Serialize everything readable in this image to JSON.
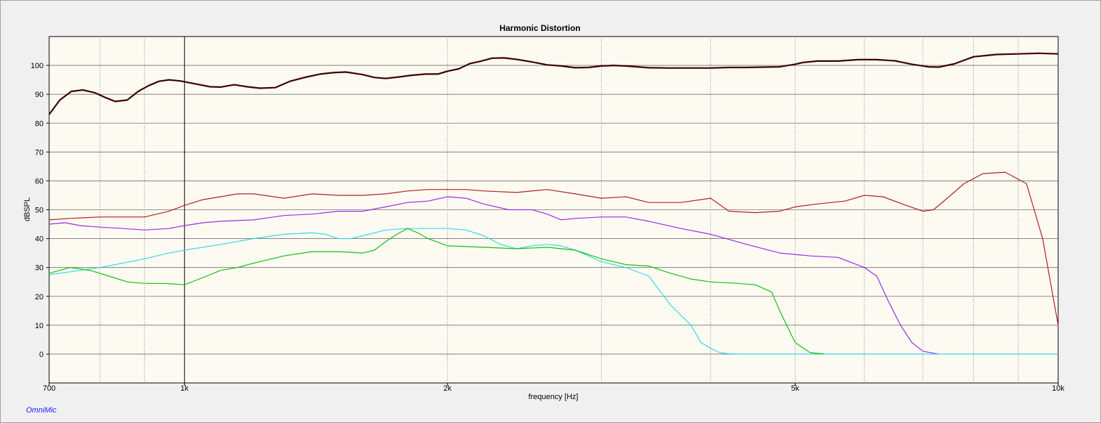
{
  "watermark": "OmniMic",
  "chart_data": {
    "type": "line",
    "title": "Harmonic Distortion",
    "xlabel": "frequency [Hz]",
    "ylabel": "dBSPL",
    "xscale": "log",
    "xlim": [
      700,
      10000
    ],
    "ylim": [
      -10,
      110
    ],
    "x_ticks": [
      {
        "value": 700,
        "label": "700"
      },
      {
        "value": 1000,
        "label": "1k"
      },
      {
        "value": 2000,
        "label": "2k"
      },
      {
        "value": 5000,
        "label": "5k"
      },
      {
        "value": 10000,
        "label": "10k"
      }
    ],
    "x_minor_gridlines": [
      800,
      900,
      3000,
      4000,
      6000,
      7000,
      8000,
      9000
    ],
    "x_major_gridline": 1000,
    "y_ticks": [
      0,
      10,
      20,
      30,
      40,
      50,
      60,
      70,
      80,
      90,
      100
    ],
    "grid": true,
    "legend": "none",
    "background": "#fdfaf2",
    "series": [
      {
        "color": "#3a0000",
        "x": [
          700,
          720,
          742,
          765,
          790,
          810,
          833,
          860,
          885,
          910,
          935,
          960,
          990,
          1030,
          1070,
          1100,
          1140,
          1180,
          1220,
          1270,
          1320,
          1380,
          1430,
          1480,
          1530,
          1600,
          1650,
          1700,
          1760,
          1820,
          1890,
          1950,
          2000,
          2060,
          2120,
          2180,
          2250,
          2320,
          2400,
          2500,
          2600,
          2700,
          2800,
          2900,
          3000,
          3100,
          3200,
          3400,
          3600,
          3800,
          4000,
          4200,
          4400,
          4600,
          4800,
          5000,
          5100,
          5300,
          5600,
          5900,
          6200,
          6500,
          6800,
          7100,
          7300,
          7600,
          8000,
          8500,
          9000,
          9500,
          10000
        ],
        "y": [
          83,
          88,
          91,
          91.5,
          90.5,
          89,
          87.5,
          88,
          91,
          93,
          94.5,
          95,
          94.6,
          93.6,
          92.6,
          92.5,
          93.3,
          92.6,
          92.1,
          92.3,
          94.5,
          96,
          97,
          97.5,
          97.7,
          96.8,
          95.8,
          95.5,
          96,
          96.6,
          97,
          97,
          98,
          98.8,
          100.6,
          101.4,
          102.5,
          102.6,
          102.1,
          101.2,
          100.2,
          99.8,
          99.2,
          99.3,
          99.8,
          100,
          99.8,
          99.2,
          99.1,
          99.1,
          99.1,
          99.3,
          99.3,
          99.4,
          99.5,
          100.4,
          101,
          101.5,
          101.5,
          102,
          102,
          101.6,
          100.4,
          99.5,
          99.4,
          100.5,
          103,
          103.8,
          104,
          104.2,
          104
        ]
      },
      {
        "color": "#b02020",
        "x": [
          700,
          740,
          800,
          850,
          900,
          960,
          1000,
          1050,
          1100,
          1150,
          1200,
          1300,
          1400,
          1500,
          1600,
          1700,
          1800,
          1900,
          2000,
          2100,
          2200,
          2400,
          2600,
          2800,
          3000,
          3200,
          3400,
          3700,
          4000,
          4200,
          4500,
          4800,
          5000,
          5300,
          5700,
          6000,
          6300,
          6700,
          7000,
          7200,
          7500,
          7800,
          8200,
          8700,
          9200,
          9600,
          10000
        ],
        "y": [
          46.5,
          47,
          47.5,
          47.5,
          47.5,
          49.5,
          51.5,
          53.5,
          54.5,
          55.5,
          55.5,
          54,
          55.5,
          55,
          55,
          55.5,
          56.5,
          57,
          57,
          57,
          56.5,
          56,
          57,
          55.5,
          54,
          54.5,
          52.5,
          52.5,
          54,
          49.5,
          49,
          49.5,
          51,
          52,
          53,
          55,
          54.5,
          51.5,
          49.5,
          50,
          54.5,
          59,
          62.5,
          63,
          59,
          40,
          10
        ]
      },
      {
        "color": "#9a2be0",
        "x": [
          700,
          730,
          760,
          800,
          850,
          900,
          960,
          1000,
          1050,
          1100,
          1200,
          1300,
          1400,
          1500,
          1600,
          1700,
          1800,
          1900,
          2000,
          2100,
          2200,
          2350,
          2500,
          2600,
          2700,
          2800,
          3000,
          3200,
          3400,
          3700,
          4000,
          4400,
          4800,
          5200,
          5600,
          6000,
          6200,
          6400,
          6600,
          6800,
          7000,
          7200,
          7300
        ],
        "y": [
          45,
          45.5,
          44.5,
          44,
          43.5,
          43,
          43.5,
          44.5,
          45.5,
          46,
          46.5,
          48,
          48.5,
          49.5,
          49.5,
          51,
          52.5,
          53,
          54.5,
          54,
          52,
          50,
          50,
          48.5,
          46.5,
          47,
          47.5,
          47.5,
          46,
          43.5,
          41.5,
          38,
          35,
          34,
          33.5,
          30,
          27,
          18,
          10,
          4,
          1,
          0.3,
          0
        ]
      },
      {
        "color": "#38d7e8",
        "x": [
          700,
          740,
          800,
          850,
          900,
          960,
          1000,
          1050,
          1100,
          1200,
          1300,
          1400,
          1450,
          1500,
          1550,
          1600,
          1700,
          1800,
          1900,
          2000,
          2100,
          2200,
          2300,
          2400,
          2500,
          2600,
          2700,
          2800,
          2900,
          3000,
          3200,
          3400,
          3600,
          3800,
          3900,
          4000,
          4100,
          4200,
          4300,
          10000
        ],
        "y": [
          27.5,
          28.5,
          30,
          31.5,
          33,
          35,
          36,
          37,
          38,
          40,
          41.5,
          42,
          41.5,
          40,
          40,
          41,
          43,
          43.5,
          43.5,
          43.5,
          43,
          41,
          38,
          36.5,
          37.5,
          38,
          37.5,
          36,
          34,
          32,
          30,
          27,
          17,
          10,
          4,
          2,
          0.5,
          0.1,
          0,
          0
        ]
      },
      {
        "color": "#10c010",
        "x": [
          700,
          740,
          780,
          820,
          860,
          900,
          950,
          1000,
          1050,
          1100,
          1150,
          1200,
          1300,
          1400,
          1500,
          1600,
          1650,
          1700,
          1750,
          1800,
          1850,
          1900,
          2000,
          2200,
          2400,
          2600,
          2800,
          3000,
          3200,
          3400,
          3600,
          3800,
          4000,
          4300,
          4500,
          4700,
          4800,
          5000,
          5200,
          5400
        ],
        "y": [
          28,
          30,
          29,
          27,
          25,
          24.5,
          24.5,
          24,
          26.5,
          29,
          30,
          31.5,
          34,
          35.5,
          35.5,
          35,
          36,
          39,
          41.5,
          43.5,
          42,
          40,
          37.5,
          37,
          36.5,
          37,
          36,
          33,
          31,
          30.5,
          28,
          26,
          25,
          24.5,
          24,
          21.5,
          15,
          4,
          0.5,
          0
        ]
      }
    ]
  }
}
